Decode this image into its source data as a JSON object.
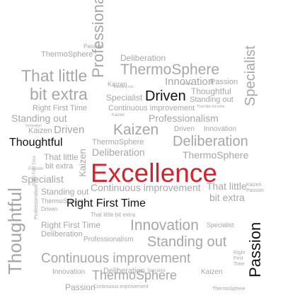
{
  "words": {
    "excellence": "Excellence",
    "thoughtful_bold": "Thoughtful",
    "driven_bold": "Driven",
    "right_first_time_bold": "Right First Time",
    "passion_vertical_bold": "Passion",
    "professionalism_vertical_top": "Professionalism",
    "specialist_vertical_top": "Specialist",
    "thoughtful_vertical_large": "Thoughtful",
    "kaizen_vertical": "Kaizen",
    "professionalism_vertical_small": "Professionalism",
    "right_first_time_vertical": "Right First Time",
    "thermosphere_top": "ThermoSphere",
    "passion_top": "Passion",
    "deliberation_top": "Deliberation",
    "that_little_top": "That little",
    "bit_extra_top": "bit extra",
    "thermosphere_2": "ThermoSphere",
    "kaizen_1": "Kaizen",
    "innovation_1": "Innovation",
    "passion_2": "Passion",
    "thoughtful_2": "Thoughtful",
    "specialist_1": "Specialist",
    "standing_out_1": "Standing out",
    "standing_out_2": "Standing out",
    "right_first_time_2": "Right First Time",
    "continuous_improvement_1": "Continuous improvement",
    "that_little_bit_extra_tiny": "That little bit extra",
    "kaizen_2": "Kaizen",
    "driven_2": "Driven",
    "kaizen_big": "Kaizen",
    "professionalism_2": "Professionalism",
    "driven_3": "Driven",
    "innovation_2": "Innovation",
    "thermosphere_3": "ThermoSphere",
    "deliberation_2": "Deliberation",
    "deliberation_big": "Deliberation",
    "that_little_2": "That little",
    "bit_extra_2": "bit extra",
    "thermosphere_4": "ThermoSphere",
    "passion_3": "Passion",
    "specialist_2": "Specialist",
    "standing_out_3": "Standing out",
    "thermosphere_5": "ThermoSphere",
    "continuous_improvement_2": "Continuous improvement",
    "that_little_3": "That little",
    "bit_extra_3": "bit extra",
    "kaizen_3": "Kaizen",
    "passion_4": "Passion",
    "driven_4": "Driven",
    "right_first_time_3": "Right First Time",
    "that_little_bit_extra_2": "That little bit extra",
    "innovation_big": "Innovation",
    "standing_out_big": "Standing out",
    "deliberation_3": "Deliberation",
    "specialist_3": "Specialist",
    "professionalism_3": "Professionalism",
    "continuous_improvement_big": "Continuous improvement",
    "thermosphere_big": "ThermoSphere",
    "innovation_3": "Innovation",
    "deliberation_4": "Deliberation",
    "specialist_4": "Specialist",
    "passion_5": "Passion",
    "continuous_improvement_small": "Continuous improvement",
    "kaizen_4": "Kaizen",
    "thermosphere_6": "ThermoSphere",
    "right_stack_1": "Right",
    "right_stack_2": "First",
    "right_stack_3": "Time",
    "standing_out_small": "Standing out",
    "driven_small": "Driven",
    "innovation_small": "Innovation",
    "kaizen_small": "Kaizen"
  },
  "colors": {
    "primary_gray": "#a7a7a7",
    "dark": "#111111",
    "accent_red": "#d8222b",
    "background": "#ffffff"
  }
}
